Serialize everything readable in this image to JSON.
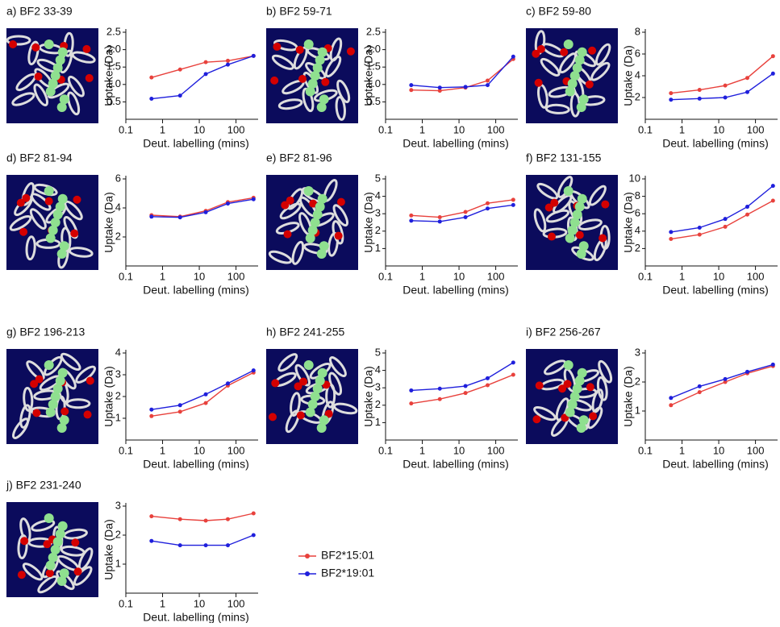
{
  "chart_data": [
    {
      "type": "line",
      "title": "a) BF2 33-39",
      "xlabel": "Deut. labelling (mins)",
      "ylabel": "Uptake (Da)",
      "log_x": true,
      "x": [
        0.5,
        3,
        15,
        60,
        300
      ],
      "xlim": [
        0.1,
        400
      ],
      "xticks": [
        0.1,
        1,
        10,
        100
      ],
      "ylim": [
        0,
        2.5
      ],
      "yticks": [
        {
          "value": 0.5,
          "label": "0.5"
        },
        {
          "value": 1,
          "label": "1.0"
        },
        {
          "value": 1.5,
          "label": "1.5"
        },
        {
          "value": 2,
          "label": "2.0"
        },
        {
          "value": 2.5,
          "label": "2.5"
        }
      ],
      "series": [
        {
          "color": "#e8413c",
          "values": [
            1.2,
            1.43,
            1.64,
            1.68,
            1.82
          ]
        },
        {
          "color": "#1f1fdc",
          "values": [
            0.59,
            0.68,
            1.3,
            1.57,
            1.82
          ]
        }
      ]
    },
    {
      "type": "line",
      "title": "b) BF2 59-71",
      "xlabel": "Deut. labelling (mins)",
      "ylabel": "Uptake (Da)",
      "log_x": true,
      "x": [
        0.5,
        3,
        15,
        60,
        300
      ],
      "xlim": [
        0.1,
        400
      ],
      "xticks": [
        0.1,
        1,
        10,
        100
      ],
      "ylim": [
        0,
        2.5
      ],
      "yticks": [
        {
          "value": 0.5,
          "label": "0.5"
        },
        {
          "value": 1,
          "label": "1.0"
        },
        {
          "value": 1.5,
          "label": "1.5"
        },
        {
          "value": 2,
          "label": "2.0"
        },
        {
          "value": 2.5,
          "label": "2.5"
        }
      ],
      "series": [
        {
          "color": "#e8413c",
          "values": [
            0.84,
            0.82,
            0.91,
            1.11,
            1.73
          ]
        },
        {
          "color": "#1f1fdc",
          "values": [
            0.98,
            0.91,
            0.93,
            0.98,
            1.8
          ]
        }
      ]
    },
    {
      "type": "line",
      "title": "c) BF2 59-80",
      "xlabel": "Deut. labelling (mins)",
      "ylabel": "Uptake (Da)",
      "log_x": true,
      "x": [
        0.5,
        3,
        15,
        60,
        300
      ],
      "xlim": [
        0.1,
        400
      ],
      "xticks": [
        0.1,
        1,
        10,
        100
      ],
      "ylim": [
        0,
        8
      ],
      "yticks": [
        2,
        4,
        6,
        8
      ],
      "series": [
        {
          "color": "#e8413c",
          "values": [
            2.4,
            2.7,
            3.1,
            3.8,
            5.8
          ]
        },
        {
          "color": "#1f1fdc",
          "values": [
            1.8,
            1.9,
            2.0,
            2.5,
            4.2
          ]
        }
      ]
    },
    {
      "type": "line",
      "title": "d) BF2 81-94",
      "xlabel": "Deut. labelling (mins)",
      "ylabel": "Uptake (Da)",
      "log_x": true,
      "x": [
        0.5,
        3,
        15,
        60,
        300
      ],
      "xlim": [
        0.1,
        400
      ],
      "xticks": [
        0.1,
        1,
        10,
        100
      ],
      "ylim": [
        0,
        6
      ],
      "yticks": [
        2,
        4,
        6
      ],
      "series": [
        {
          "color": "#e8413c",
          "values": [
            3.5,
            3.4,
            3.8,
            4.4,
            4.7
          ]
        },
        {
          "color": "#1f1fdc",
          "values": [
            3.4,
            3.35,
            3.7,
            4.3,
            4.6
          ]
        }
      ]
    },
    {
      "type": "line",
      "title": "e) BF2 81-96",
      "xlabel": "Deut. labelling (mins)",
      "ylabel": "Uptake (Da)",
      "log_x": true,
      "x": [
        0.5,
        3,
        15,
        60,
        300
      ],
      "xlim": [
        0.1,
        400
      ],
      "xticks": [
        0.1,
        1,
        10,
        100
      ],
      "ylim": [
        0,
        5
      ],
      "yticks": [
        1,
        2,
        3,
        4,
        5
      ],
      "series": [
        {
          "color": "#e8413c",
          "values": [
            2.9,
            2.8,
            3.1,
            3.6,
            3.8
          ]
        },
        {
          "color": "#1f1fdc",
          "values": [
            2.6,
            2.55,
            2.8,
            3.3,
            3.5
          ]
        }
      ]
    },
    {
      "type": "line",
      "title": "f) BF2 131-155",
      "xlabel": "Deut. labelling (mins)",
      "ylabel": "Uptake (Da)",
      "log_x": true,
      "x": [
        0.5,
        3,
        15,
        60,
        300
      ],
      "xlim": [
        0.1,
        400
      ],
      "xticks": [
        0.1,
        1,
        10,
        100
      ],
      "ylim": [
        0,
        10
      ],
      "yticks": [
        2,
        4,
        6,
        8,
        10
      ],
      "series": [
        {
          "color": "#e8413c",
          "values": [
            3.1,
            3.6,
            4.5,
            5.9,
            7.5
          ]
        },
        {
          "color": "#1f1fdc",
          "values": [
            3.9,
            4.4,
            5.4,
            6.8,
            9.2
          ]
        }
      ]
    },
    {
      "type": "line",
      "title": "g) BF2 196-213",
      "xlabel": "Deut. labelling (mins)",
      "ylabel": "Uptake (Da)",
      "log_x": true,
      "x": [
        0.5,
        3,
        15,
        60,
        300
      ],
      "xlim": [
        0.1,
        400
      ],
      "xticks": [
        0.1,
        1,
        10,
        100
      ],
      "ylim": [
        0,
        4
      ],
      "yticks": [
        1,
        2,
        3,
        4
      ],
      "series": [
        {
          "color": "#e8413c",
          "values": [
            1.1,
            1.3,
            1.7,
            2.5,
            3.1
          ]
        },
        {
          "color": "#1f1fdc",
          "values": [
            1.4,
            1.6,
            2.1,
            2.6,
            3.2
          ]
        }
      ]
    },
    {
      "type": "line",
      "title": "h) BF2 241-255",
      "xlabel": "Deut. labelling (mins)",
      "ylabel": "Uptake (Da)",
      "log_x": true,
      "x": [
        0.5,
        3,
        15,
        60,
        300
      ],
      "xlim": [
        0.1,
        400
      ],
      "xticks": [
        0.1,
        1,
        10,
        100
      ],
      "ylim": [
        0,
        5
      ],
      "yticks": [
        1,
        2,
        3,
        4,
        5
      ],
      "series": [
        {
          "color": "#e8413c",
          "values": [
            2.1,
            2.35,
            2.7,
            3.15,
            3.75
          ]
        },
        {
          "color": "#1f1fdc",
          "values": [
            2.85,
            2.95,
            3.1,
            3.55,
            4.45
          ]
        }
      ]
    },
    {
      "type": "line",
      "title": "i) BF2 256-267",
      "xlabel": "Deut. labelling (mins)",
      "ylabel": "Uptake (Da)",
      "log_x": true,
      "x": [
        0.5,
        3,
        15,
        60,
        300
      ],
      "xlim": [
        0.1,
        400
      ],
      "xticks": [
        0.1,
        1,
        10,
        100
      ],
      "ylim": [
        0,
        3
      ],
      "yticks": [
        1,
        2,
        3
      ],
      "series": [
        {
          "color": "#e8413c",
          "values": [
            1.2,
            1.65,
            2.0,
            2.3,
            2.55
          ]
        },
        {
          "color": "#1f1fdc",
          "values": [
            1.45,
            1.85,
            2.1,
            2.35,
            2.6
          ]
        }
      ]
    },
    {
      "type": "line",
      "title": "j) BF2 231-240",
      "xlabel": "Deut. labelling (mins)",
      "ylabel": "Uptake (Da)",
      "log_x": true,
      "x": [
        0.5,
        3,
        15,
        60,
        300
      ],
      "xlim": [
        0.1,
        400
      ],
      "xticks": [
        0.1,
        1,
        10,
        100
      ],
      "ylim": [
        0,
        3
      ],
      "yticks": [
        1,
        2,
        3
      ],
      "series": [
        {
          "color": "#e8413c",
          "values": [
            2.65,
            2.55,
            2.5,
            2.55,
            2.75
          ]
        },
        {
          "color": "#1f1fdc",
          "values": [
            1.8,
            1.65,
            1.65,
            1.65,
            2.0
          ]
        }
      ]
    }
  ],
  "legend": {
    "items": [
      {
        "label": "BF2*15:01",
        "color": "#e8413c"
      },
      {
        "label": "BF2*19:01",
        "color": "#1f1fdc"
      }
    ]
  }
}
